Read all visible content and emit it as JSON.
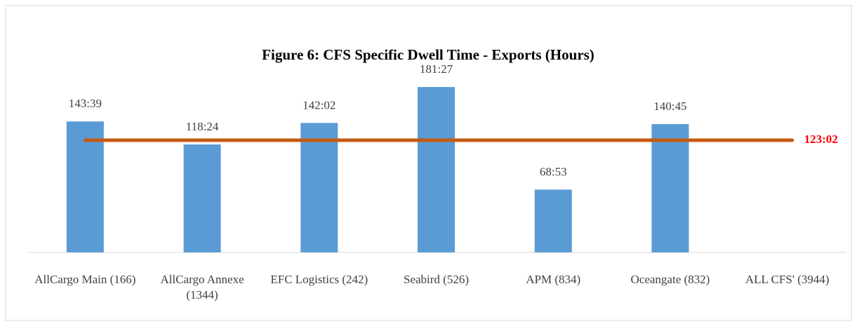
{
  "chart_data": {
    "type": "bar",
    "title": "Figure 6: CFS Specific Dwell Time - Exports (Hours)",
    "categories": [
      "AllCargo Main (166)",
      "AllCargo Annexe (1344)",
      "EFC Logistics (242)",
      "Seabird (526)",
      "APM (834)",
      "Oceangate (832)",
      "ALL CFS' (3944)"
    ],
    "values": [
      143.65,
      118.4,
      142.0333,
      181.45,
      68.8833,
      140.75,
      null
    ],
    "value_labels": [
      "143:39",
      "118:24",
      "142:02",
      "181:27",
      "68:53",
      "140:45",
      null
    ],
    "color": "#5b9bd5",
    "reference_line": {
      "value": 123.0333,
      "label": "123:02",
      "color": "#c55a11",
      "label_color": "#ff0000"
    }
  }
}
